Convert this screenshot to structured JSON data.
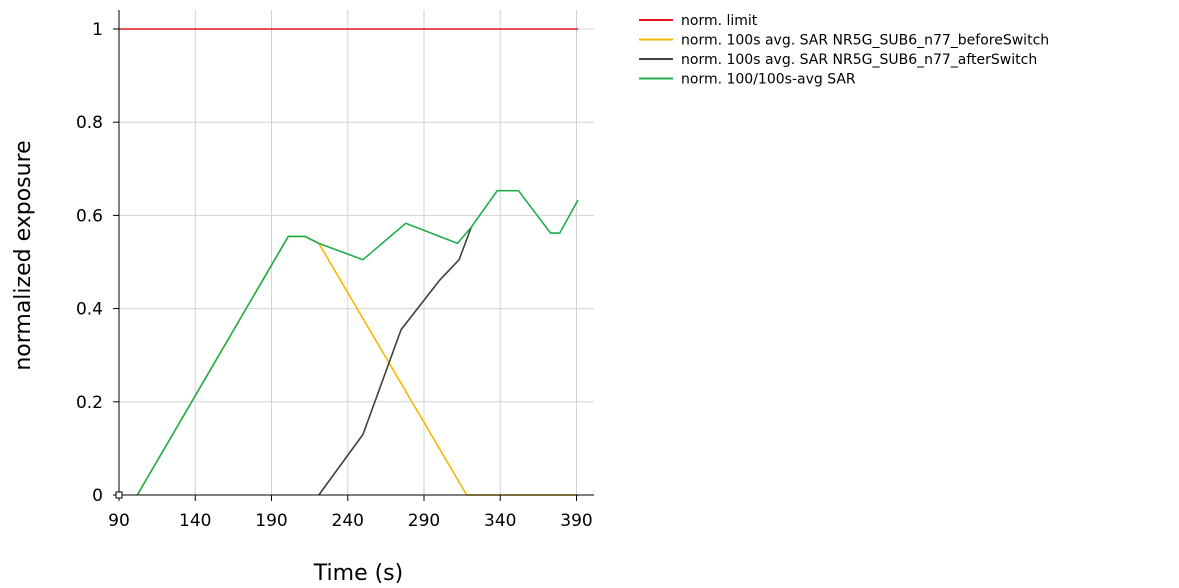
{
  "chart_data": {
    "type": "line",
    "title": "",
    "xlabel": "Time (s)",
    "ylabel": "normalized exposure",
    "xlim": [
      90,
      395
    ],
    "ylim": [
      0,
      1.05
    ],
    "xticks": [
      90,
      140,
      190,
      240,
      290,
      340,
      390
    ],
    "yticks": [
      0,
      0.2,
      0.4,
      0.6,
      0.8,
      1
    ],
    "ytick_labels": [
      "0",
      "0.2",
      "0.4",
      "0.6",
      "0.8",
      "1"
    ],
    "grid": true,
    "legend_position": "outside-right",
    "series": [
      {
        "name": "norm. limit",
        "color": "#e8141b",
        "points": [
          [
            90,
            1.0
          ],
          [
            391,
            1.0
          ]
        ]
      },
      {
        "name": "norm. 100s avg. SAR NR5G_SUB6_n77_beforeSwitch",
        "color": "#f5b800",
        "points": [
          [
            102,
            0.0
          ],
          [
            201,
            0.555
          ],
          [
            212,
            0.555
          ],
          [
            221,
            0.54
          ],
          [
            318,
            0.0
          ],
          [
            391,
            0.0
          ]
        ]
      },
      {
        "name": "norm. 100s avg. SAR NR5G_SUB6_n77_afterSwitch",
        "color": "#404040",
        "points": [
          [
            221,
            0.0
          ],
          [
            250,
            0.13
          ],
          [
            275,
            0.355
          ],
          [
            300,
            0.46
          ],
          [
            313,
            0.505
          ],
          [
            321,
            0.575
          ]
        ]
      },
      {
        "name": "norm. 100/100s-avg SAR",
        "color": "#1fae4b",
        "points": [
          [
            102,
            0.0
          ],
          [
            201,
            0.555
          ],
          [
            212,
            0.555
          ],
          [
            221,
            0.54
          ],
          [
            250,
            0.505
          ],
          [
            278,
            0.583
          ],
          [
            312,
            0.54
          ],
          [
            321,
            0.575
          ],
          [
            338,
            0.653
          ],
          [
            352,
            0.653
          ],
          [
            373,
            0.562
          ],
          [
            379,
            0.562
          ],
          [
            391,
            0.633
          ]
        ]
      }
    ]
  }
}
